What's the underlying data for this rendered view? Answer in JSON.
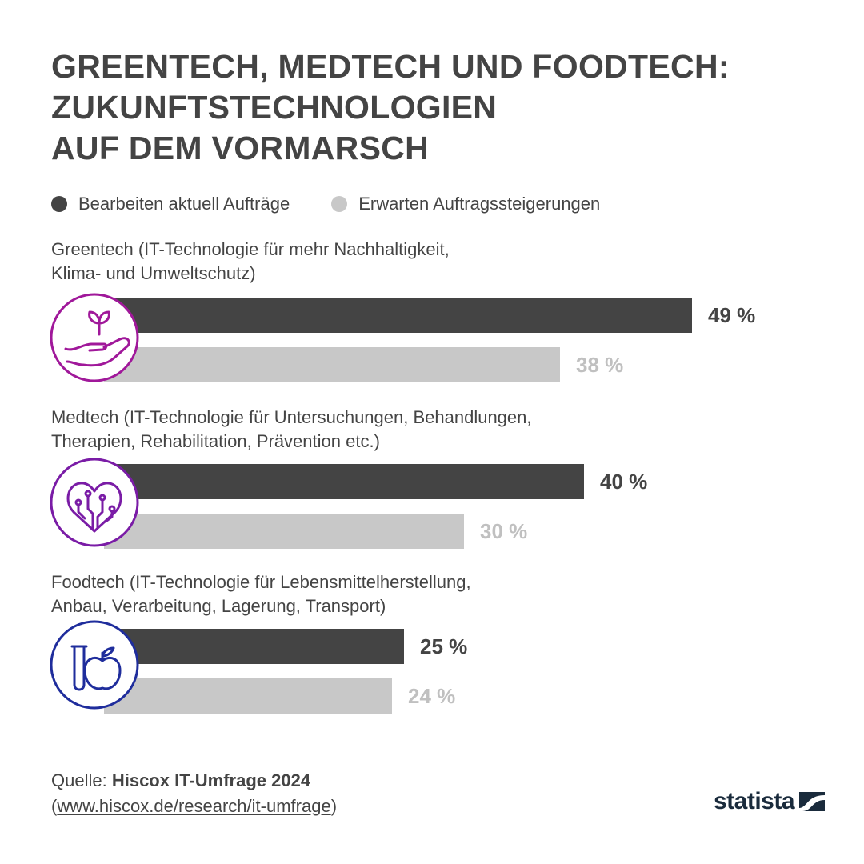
{
  "title_lines": [
    "GREENTECH, MEDTECH UND FOODTECH:",
    "ZUKUNFTSTECHNOLOGIEN",
    "AUF DEM VORMARSCH"
  ],
  "legend": [
    {
      "label": "Bearbeiten aktuell Aufträge",
      "color": "#444444"
    },
    {
      "label": "Erwarten Auftragssteigerungen",
      "color": "#c8c8c8"
    }
  ],
  "chart_data": {
    "type": "bar",
    "orientation": "horizontal",
    "categories": [
      {
        "line1": "Greentech (IT-Technologie für mehr Nachhaltigkeit,",
        "line2": "Klima- und Umweltschutz)",
        "icon": "plant-in-hand-icon",
        "icon_color": "#a0189a"
      },
      {
        "line1": "Medtech (IT-Technologie für Untersuchungen, Behandlungen,",
        "line2": "Therapien, Rehabilitation, Prävention etc.)",
        "icon": "circuit-heart-icon",
        "icon_color": "#7a1ca6"
      },
      {
        "line1": "Foodtech (IT-Technologie für Lebensmittelherstellung,",
        "line2": "Anbau, Verarbeitung, Lagerung, Transport)",
        "icon": "test-tube-apple-icon",
        "icon_color": "#1f2d9c"
      }
    ],
    "series": [
      {
        "name": "Bearbeiten aktuell Aufträge",
        "values": [
          49,
          40,
          25
        ],
        "color": "#444444",
        "label_color": "#444444"
      },
      {
        "name": "Erwarten Auftragssteigerungen",
        "values": [
          38,
          30,
          24
        ],
        "color": "#c8c8c8",
        "label_color": "#c0c0c0"
      }
    ],
    "value_suffix": " %",
    "labels": [
      "49 %",
      "38 %",
      "40 %",
      "30 %",
      "25 %",
      "24 %"
    ]
  },
  "source": {
    "prefix": "Quelle: ",
    "name": "Hiscox IT-Umfrage 2024",
    "url_text": "www.hiscox.de/research/it-umfrage"
  },
  "logo": {
    "text": "statista"
  }
}
